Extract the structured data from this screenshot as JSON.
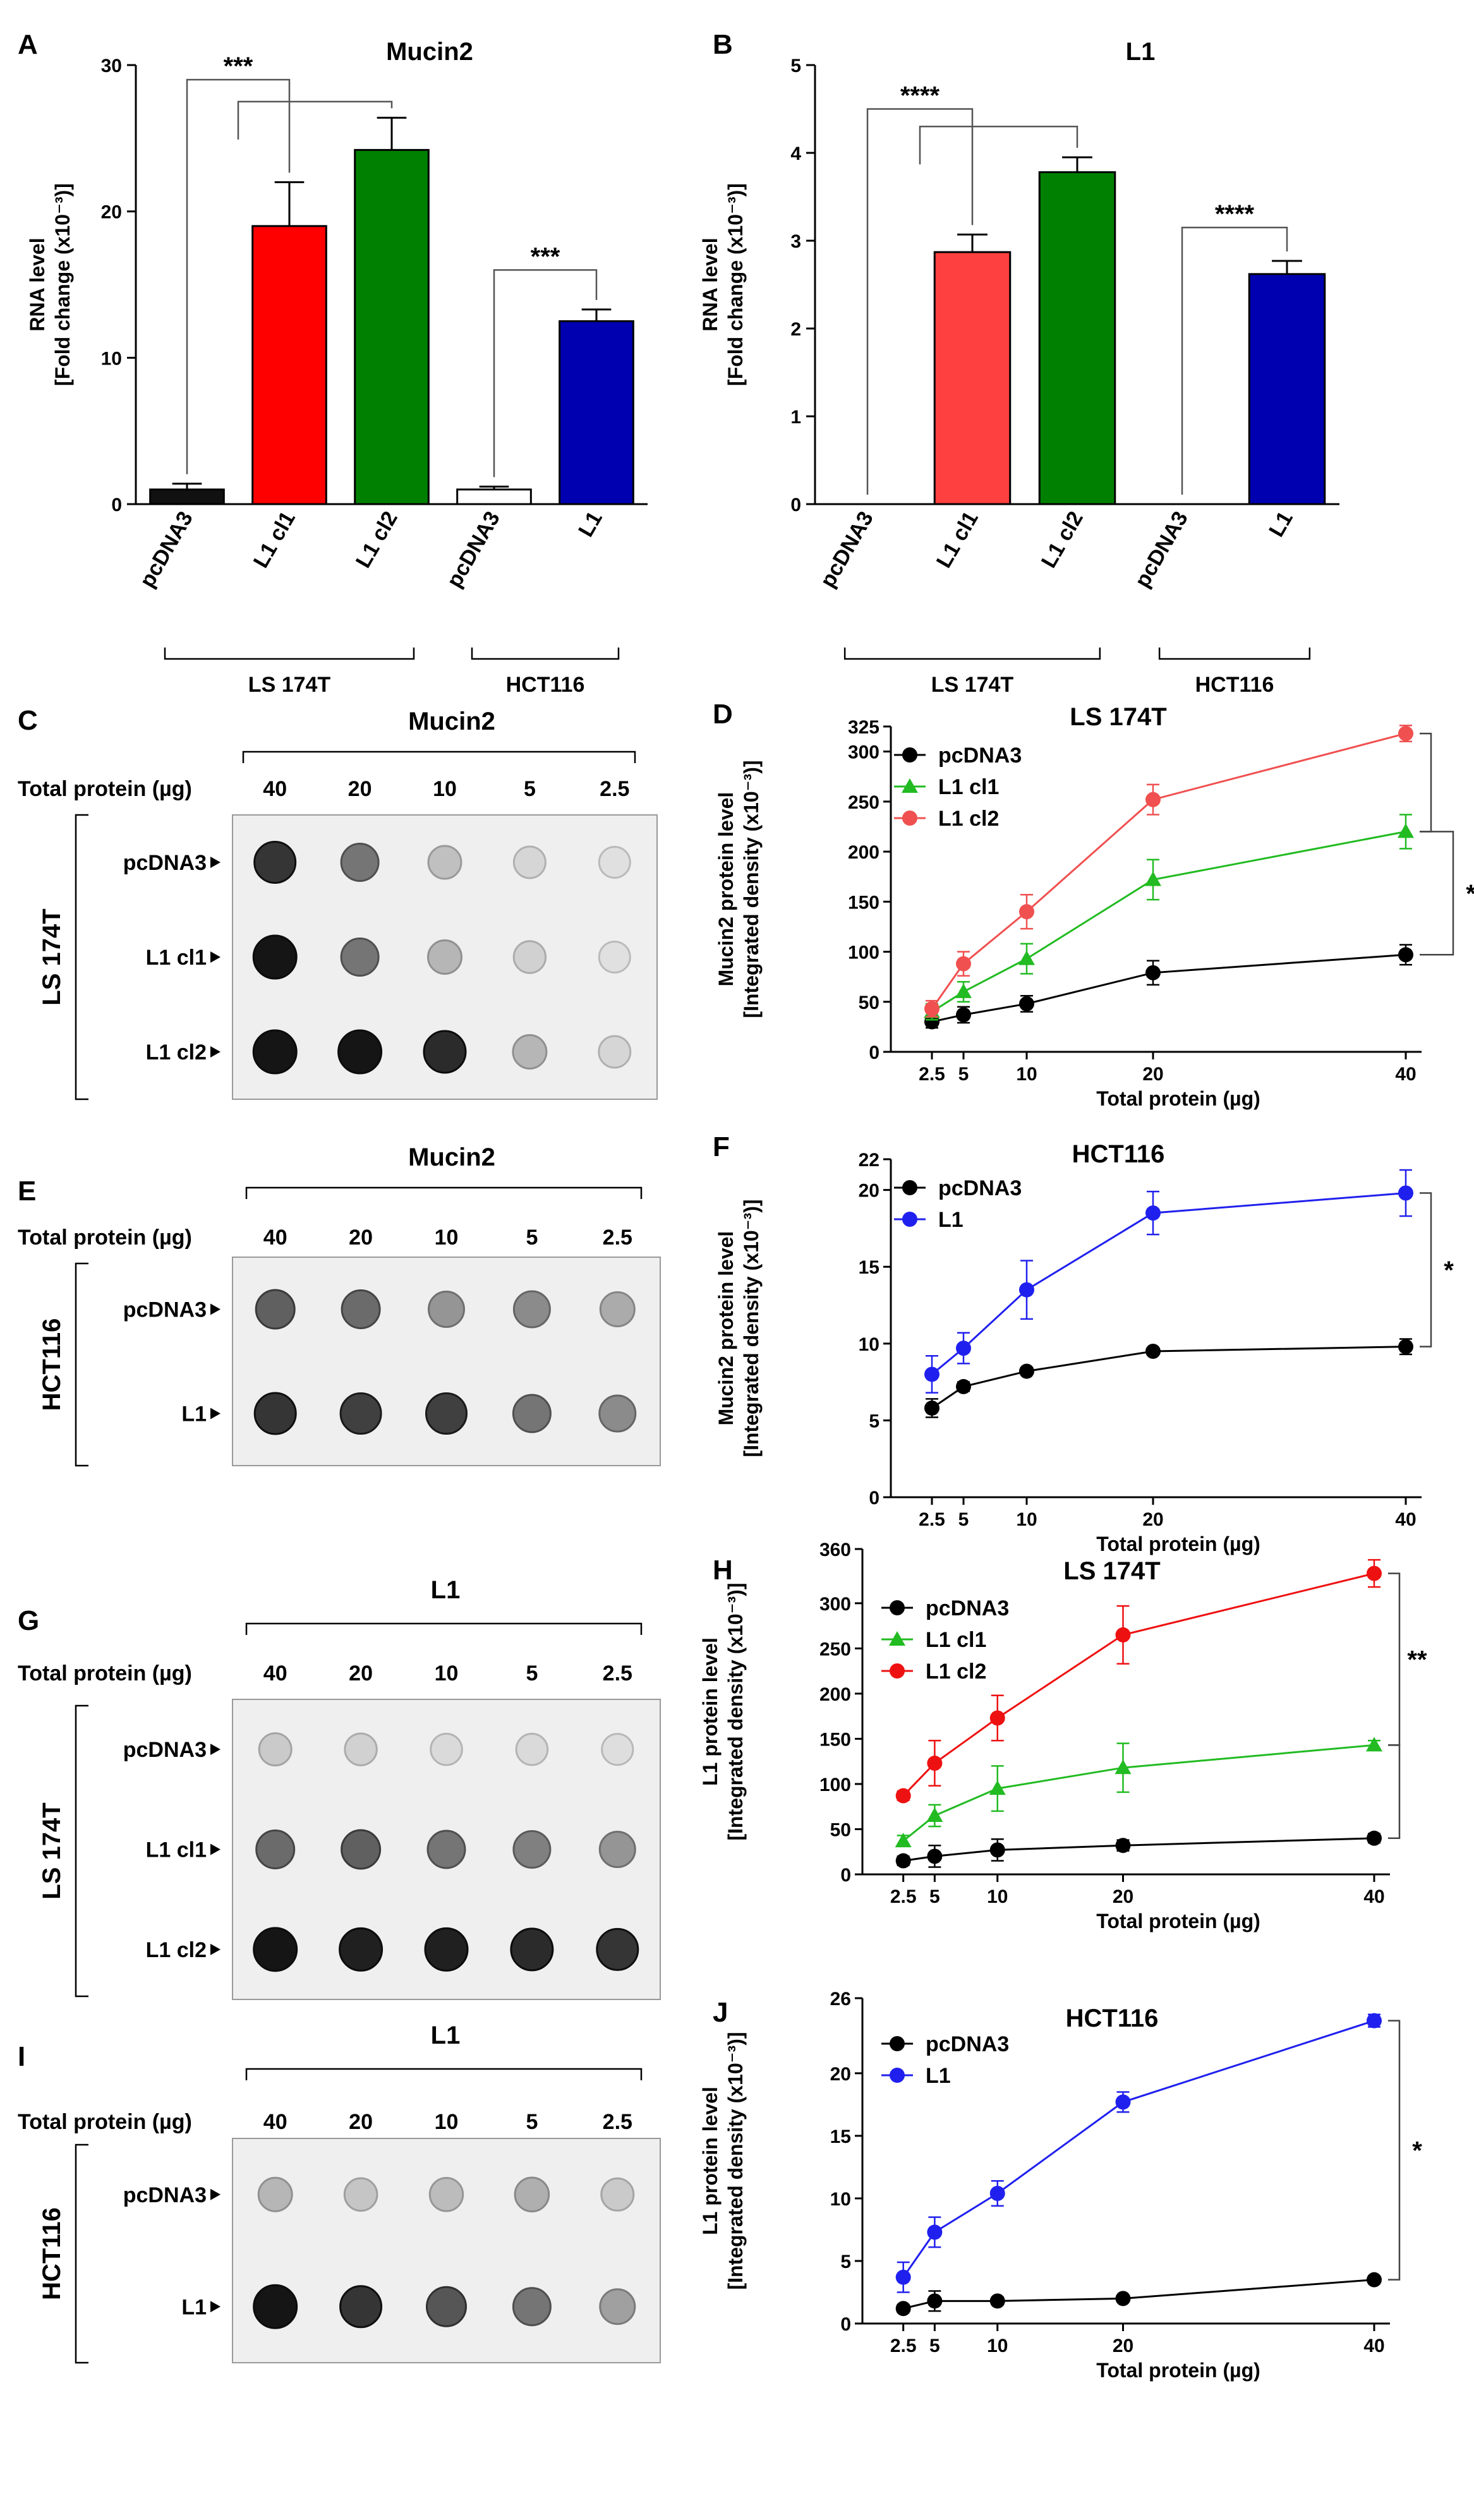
{
  "chart_data": [
    {
      "id": "A",
      "type": "bar",
      "panel_label": "A",
      "title": "Mucin2",
      "ylabel": "RNA level",
      "ylabel2": "[Fold change (x10⁻³)]",
      "ylim": [
        0,
        30
      ],
      "yticks": [
        0,
        10,
        20,
        30
      ],
      "categories": [
        "pcDNA3",
        "L1 cl1",
        "L1 cl2",
        "pcDNA3",
        "L1"
      ],
      "values": [
        1.0,
        19.0,
        24.2,
        1.0,
        12.5
      ],
      "errors": [
        0.4,
        3.0,
        2.2,
        0.2,
        0.8
      ],
      "colors": [
        "#111111",
        "#ff0000",
        "#008000",
        "#ffffff",
        "#0000b0"
      ],
      "groups": [
        {
          "label": "LS 174T",
          "from": 0,
          "to": 2
        },
        {
          "label": "HCT116",
          "from": 3,
          "to": 4
        }
      ],
      "significance": [
        {
          "from": 0,
          "to": 1,
          "label": "***",
          "level": 29,
          "text": true
        },
        {
          "from": 0.5,
          "to": 2,
          "label": "",
          "level": 27.5,
          "text": false
        },
        {
          "from": 3,
          "to": 4,
          "label": "***",
          "level": 16,
          "text": true
        }
      ]
    },
    {
      "id": "B",
      "type": "bar",
      "panel_label": "B",
      "title": "L1",
      "ylabel": "RNA level",
      "ylabel2": "[Fold change (x10⁻³)]",
      "ylim": [
        0,
        5
      ],
      "yticks": [
        0,
        1,
        2,
        3,
        4,
        5
      ],
      "categories": [
        "pcDNA3",
        "L1 cl1",
        "L1 cl2",
        "pcDNA3",
        "L1"
      ],
      "values": [
        0,
        2.87,
        3.78,
        0,
        2.62
      ],
      "errors": [
        0,
        0.2,
        0.17,
        0,
        0.15
      ],
      "colors": [
        "#ffffff",
        "#ff4040",
        "#008000",
        "#ffffff",
        "#0000b0"
      ],
      "groups": [
        {
          "label": "LS 174T",
          "from": 0,
          "to": 2
        },
        {
          "label": "HCT116",
          "from": 3,
          "to": 4
        }
      ],
      "significance": [
        {
          "from": 0,
          "to": 1,
          "label": "****",
          "level": 4.5,
          "text": true
        },
        {
          "from": 0.5,
          "to": 2,
          "label": "",
          "level": 4.3,
          "text": false
        },
        {
          "from": 3,
          "to": 4,
          "label": "****",
          "level": 3.15,
          "text": true
        }
      ]
    },
    {
      "id": "D",
      "type": "line",
      "panel_label": "D",
      "title": "LS 174T",
      "ylabel": "Mucin2 protein level",
      "ylabel2": "[Integrated density (x10⁻³)]",
      "xlabel": "Total protein (µg)",
      "x": [
        2.5,
        5,
        10,
        20,
        40
      ],
      "xticks": [
        2.5,
        5,
        10,
        20,
        40
      ],
      "xlim": [
        0,
        40
      ],
      "ylim": [
        0,
        325
      ],
      "yticks": [
        0,
        50,
        100,
        150,
        200,
        250,
        300,
        325
      ],
      "series": [
        {
          "name": "pcDNA3",
          "color": "#000000",
          "marker": "circle",
          "values": [
            30,
            37,
            48,
            79,
            97
          ],
          "errors": [
            6,
            8,
            8,
            12,
            10
          ]
        },
        {
          "name": "L1 cl1",
          "color": "#22bb22",
          "marker": "triangle",
          "values": [
            40,
            60,
            93,
            172,
            220
          ],
          "errors": [
            8,
            10,
            15,
            20,
            17
          ]
        },
        {
          "name": "L1 cl2",
          "color": "#f05050",
          "marker": "circle",
          "values": [
            43,
            88,
            140,
            252,
            318
          ],
          "errors": [
            8,
            12,
            17,
            15,
            8
          ]
        }
      ],
      "significance": [
        {
          "series": [
            2,
            1
          ],
          "label": "",
          "text": false
        },
        {
          "series": [
            1,
            0
          ],
          "label": "*",
          "text": true,
          "outer": true
        }
      ]
    },
    {
      "id": "F",
      "type": "line",
      "panel_label": "F",
      "title": "HCT116",
      "ylabel": "Mucin2 protein level",
      "ylabel2": "[Integrated density (x10⁻³)]",
      "xlabel": "Total protein (µg)",
      "x": [
        2.5,
        5,
        10,
        20,
        40
      ],
      "xticks": [
        2.5,
        5,
        10,
        20,
        40
      ],
      "xlim": [
        0,
        40
      ],
      "ylim": [
        0,
        22
      ],
      "yticks": [
        0,
        5,
        10,
        15,
        20,
        22
      ],
      "series": [
        {
          "name": "pcDNA3",
          "color": "#000000",
          "marker": "circle",
          "values": [
            5.8,
            7.2,
            8.2,
            9.5,
            9.8
          ],
          "errors": [
            0.6,
            0.3,
            0.2,
            0.2,
            0.5
          ]
        },
        {
          "name": "L1",
          "color": "#2020ee",
          "marker": "circle",
          "values": [
            8.0,
            9.7,
            13.5,
            18.5,
            19.8
          ],
          "errors": [
            1.2,
            1.0,
            1.9,
            1.4,
            1.5
          ]
        }
      ],
      "significance": [
        {
          "series": [
            1,
            0
          ],
          "label": "*",
          "text": true
        }
      ]
    },
    {
      "id": "H",
      "type": "line",
      "panel_label": "H",
      "title": "LS 174T",
      "ylabel": "L1 protein level",
      "ylabel2": "[Integrated density (x10⁻³)]",
      "xlabel": "Total protein (µg)",
      "x": [
        2.5,
        5,
        10,
        20,
        40
      ],
      "xticks": [
        2.5,
        5,
        10,
        20,
        40
      ],
      "xlim": [
        0,
        40
      ],
      "ylim": [
        0,
        360
      ],
      "yticks": [
        0,
        50,
        100,
        150,
        200,
        250,
        300,
        360
      ],
      "series": [
        {
          "name": "pcDNA3",
          "color": "#000000",
          "marker": "circle",
          "values": [
            15,
            20,
            27,
            32,
            40
          ],
          "errors": [
            5,
            12,
            12,
            6,
            5
          ]
        },
        {
          "name": "L1 cl1",
          "color": "#22bb22",
          "marker": "triangle",
          "values": [
            37,
            65,
            95,
            118,
            143
          ],
          "errors": [
            6,
            12,
            25,
            27,
            5
          ]
        },
        {
          "name": "L1 cl2",
          "color": "#ee1111",
          "marker": "circle",
          "values": [
            87,
            123,
            173,
            265,
            333
          ],
          "errors": [
            5,
            25,
            25,
            32,
            15
          ]
        }
      ],
      "significance": [
        {
          "series": [
            2,
            1
          ],
          "label": "**",
          "text": true
        },
        {
          "series": [
            1,
            0
          ],
          "label": "",
          "text": false
        }
      ]
    },
    {
      "id": "J",
      "type": "line",
      "panel_label": "J",
      "title": "HCT116",
      "ylabel": "L1 protein level",
      "ylabel2": "[Integrated density (x10⁻³)]",
      "xlabel": "Total protein (µg)",
      "x": [
        2.5,
        5,
        10,
        20,
        40
      ],
      "xticks": [
        2.5,
        5,
        10,
        20,
        40
      ],
      "xlim": [
        0,
        40
      ],
      "ylim": [
        0,
        26
      ],
      "yticks": [
        0,
        5,
        10,
        15,
        20,
        26
      ],
      "series": [
        {
          "name": "pcDNA3",
          "color": "#000000",
          "marker": "circle",
          "values": [
            1.2,
            1.8,
            1.8,
            2.0,
            3.5
          ],
          "errors": [
            0.3,
            0.8,
            0.3,
            0.2,
            0.3
          ]
        },
        {
          "name": "L1",
          "color": "#2020ee",
          "marker": "circle",
          "values": [
            3.7,
            7.3,
            10.4,
            17.7,
            24.2
          ],
          "errors": [
            1.2,
            1.2,
            1.0,
            0.8,
            0.5
          ]
        }
      ],
      "significance": [
        {
          "series": [
            1,
            0
          ],
          "label": "*",
          "text": true
        }
      ]
    }
  ],
  "blots": [
    {
      "id": "C",
      "panel_label": "C",
      "title": "Mucin2",
      "cell_line": "LS 174T",
      "amount_label": "Total protein (µg)",
      "amounts": [
        "40",
        "20",
        "10",
        "5",
        "2.5"
      ],
      "rows": [
        {
          "label": "pcDNA3",
          "intensity": [
            0.85,
            0.55,
            0.2,
            0.1,
            0.05
          ]
        },
        {
          "label": "L1 cl1",
          "intensity": [
            1.0,
            0.55,
            0.25,
            0.12,
            0.05
          ]
        },
        {
          "label": "L1 cl2",
          "intensity": [
            1.0,
            1.0,
            0.9,
            0.25,
            0.1
          ]
        }
      ]
    },
    {
      "id": "E",
      "panel_label": "E",
      "title": "Mucin2",
      "cell_line": "HCT116",
      "amount_label": "Total protein (µg)",
      "amounts": [
        "40",
        "20",
        "10",
        "5",
        "2.5"
      ],
      "rows": [
        {
          "label": "pcDNA3",
          "intensity": [
            0.65,
            0.6,
            0.4,
            0.45,
            0.3
          ]
        },
        {
          "label": "L1",
          "intensity": [
            0.85,
            0.8,
            0.8,
            0.55,
            0.45
          ]
        }
      ]
    },
    {
      "id": "G",
      "panel_label": "G",
      "title": "L1",
      "cell_line": "LS 174T",
      "amount_label": "Total protein (µg)",
      "amounts": [
        "40",
        "20",
        "10",
        "5",
        "2.5"
      ],
      "rows": [
        {
          "label": "pcDNA3",
          "intensity": [
            0.15,
            0.12,
            0.08,
            0.08,
            0.06
          ]
        },
        {
          "label": "L1 cl1",
          "intensity": [
            0.6,
            0.65,
            0.55,
            0.5,
            0.4
          ]
        },
        {
          "label": "L1 cl2",
          "intensity": [
            1.0,
            0.95,
            0.95,
            0.9,
            0.85
          ]
        }
      ]
    },
    {
      "id": "I",
      "panel_label": "I",
      "title": "L1",
      "cell_line": "HCT116",
      "amount_label": "Total protein (µg)",
      "amounts": [
        "40",
        "20",
        "10",
        "5",
        "2.5"
      ],
      "rows": [
        {
          "label": "pcDNA3",
          "intensity": [
            0.25,
            0.18,
            0.22,
            0.28,
            0.15
          ]
        },
        {
          "label": "L1",
          "intensity": [
            1.0,
            0.85,
            0.7,
            0.55,
            0.35
          ]
        }
      ]
    }
  ]
}
